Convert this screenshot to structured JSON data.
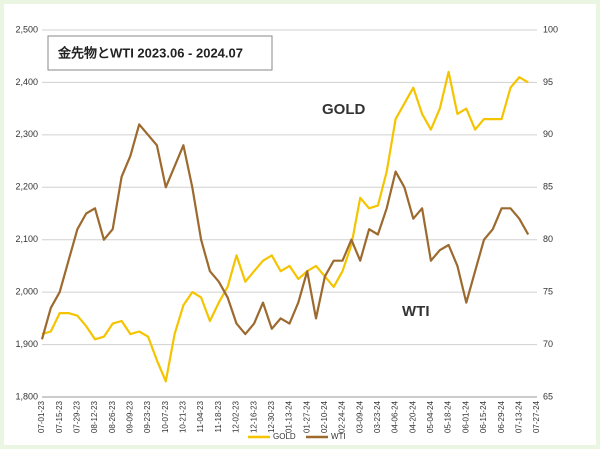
{
  "chart_data": {
    "type": "line",
    "title": "金先物とWTI  2023.06 - 2024.07",
    "categories": [
      "07-01-23",
      null,
      "07-15-23",
      null,
      "07-29-23",
      null,
      "08-12-23",
      null,
      "08-26-23",
      null,
      "09-09-23",
      null,
      "09-23-23",
      null,
      "10-07-23",
      null,
      "10-21-23",
      null,
      "11-04-23",
      null,
      "11-18-23",
      null,
      "12-02-23",
      null,
      "12-16-23",
      null,
      "12-30-23",
      null,
      "01-13-24",
      null,
      "01-27-24",
      null,
      "02-10-24",
      null,
      "02-24-24",
      null,
      "03-09-24",
      null,
      "03-23-24",
      null,
      "04-06-24",
      null,
      "04-20-24",
      null,
      "05-04-24",
      null,
      "05-18-24",
      null,
      "06-01-24",
      null,
      "06-15-24",
      null,
      "06-29-24",
      null,
      "07-13-24",
      null,
      "07-27-24"
    ],
    "series": [
      {
        "name": "GOLD",
        "color": "#f5c400",
        "axis": "y",
        "values": [
          1920,
          1925,
          1960,
          1960,
          1955,
          1935,
          1910,
          1915,
          1940,
          1945,
          1920,
          1925,
          1915,
          1870,
          1830,
          1920,
          1975,
          2000,
          1990,
          1945,
          1980,
          2010,
          2070,
          2020,
          2040,
          2060,
          2070,
          2040,
          2050,
          2025,
          2040,
          2050,
          2030,
          2010,
          2040,
          2090,
          2180,
          2160,
          2165,
          2230,
          2330,
          2360,
          2390,
          2340,
          2310,
          2350,
          2420,
          2340,
          2350,
          2310,
          2330,
          2330,
          2330,
          2390,
          2410,
          2400,
          null
        ]
      },
      {
        "name": "WTI",
        "color": "#9c6a2e",
        "axis": "y2",
        "values": [
          70.5,
          73.5,
          75,
          78,
          81,
          82.5,
          83,
          80,
          81,
          86,
          88,
          91,
          90,
          89,
          85,
          87,
          89,
          85,
          80,
          77,
          76,
          74.5,
          72,
          71,
          72,
          74,
          71.5,
          72.5,
          72,
          74,
          77,
          72.5,
          76.5,
          78,
          78,
          80,
          78,
          81,
          80.5,
          83,
          86.5,
          85,
          82,
          83,
          78,
          79,
          79.5,
          77.5,
          74,
          77,
          80,
          81,
          83,
          83,
          82,
          80.5,
          null
        ]
      }
    ],
    "annotations": [
      "GOLD",
      "WTI"
    ],
    "ylim": [
      1800,
      2500
    ],
    "yticks": [
      {
        "value": 1800,
        "label": "1,800"
      },
      {
        "value": 1900,
        "label": "1,900"
      },
      {
        "value": 2000,
        "label": "2,000"
      },
      {
        "value": 2100,
        "label": "2,100"
      },
      {
        "value": 2200,
        "label": "2,200"
      },
      {
        "value": 2300,
        "label": "2,300"
      },
      {
        "value": 2400,
        "label": "2,400"
      },
      {
        "value": 2500,
        "label": "2,500"
      }
    ],
    "y2lim": [
      65,
      100
    ],
    "y2ticks": [
      65,
      70,
      75,
      80,
      85,
      90,
      95,
      100
    ],
    "grid": true,
    "legend": "bottom"
  }
}
